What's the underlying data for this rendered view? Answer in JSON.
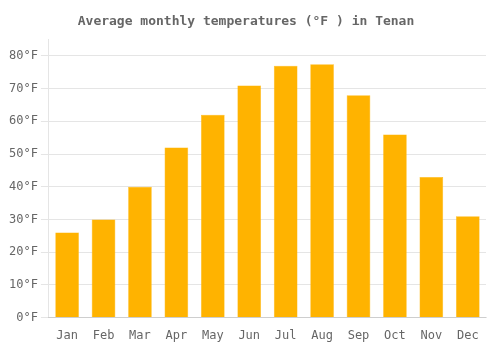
{
  "chart_data": {
    "type": "bar",
    "title": "Average monthly temperatures (°F ) in Tenan",
    "categories": [
      "Jan",
      "Feb",
      "Mar",
      "Apr",
      "May",
      "Jun",
      "Jul",
      "Aug",
      "Sep",
      "Oct",
      "Nov",
      "Dec"
    ],
    "values": [
      26,
      30,
      40,
      52,
      62,
      71,
      77,
      77.5,
      68,
      56,
      43,
      31
    ],
    "color": "#FFB300",
    "ylim": [
      0,
      85
    ],
    "yticks": [
      {
        "value": 0,
        "label": "0°F"
      },
      {
        "value": 10,
        "label": "10°F"
      },
      {
        "value": 20,
        "label": "20°F"
      },
      {
        "value": 30,
        "label": "30°F"
      },
      {
        "value": 40,
        "label": "40°F"
      },
      {
        "value": 50,
        "label": "50°F"
      },
      {
        "value": 60,
        "label": "60°F"
      },
      {
        "value": 70,
        "label": "70°F"
      },
      {
        "value": 80,
        "label": "80°F"
      }
    ],
    "grid": true
  }
}
